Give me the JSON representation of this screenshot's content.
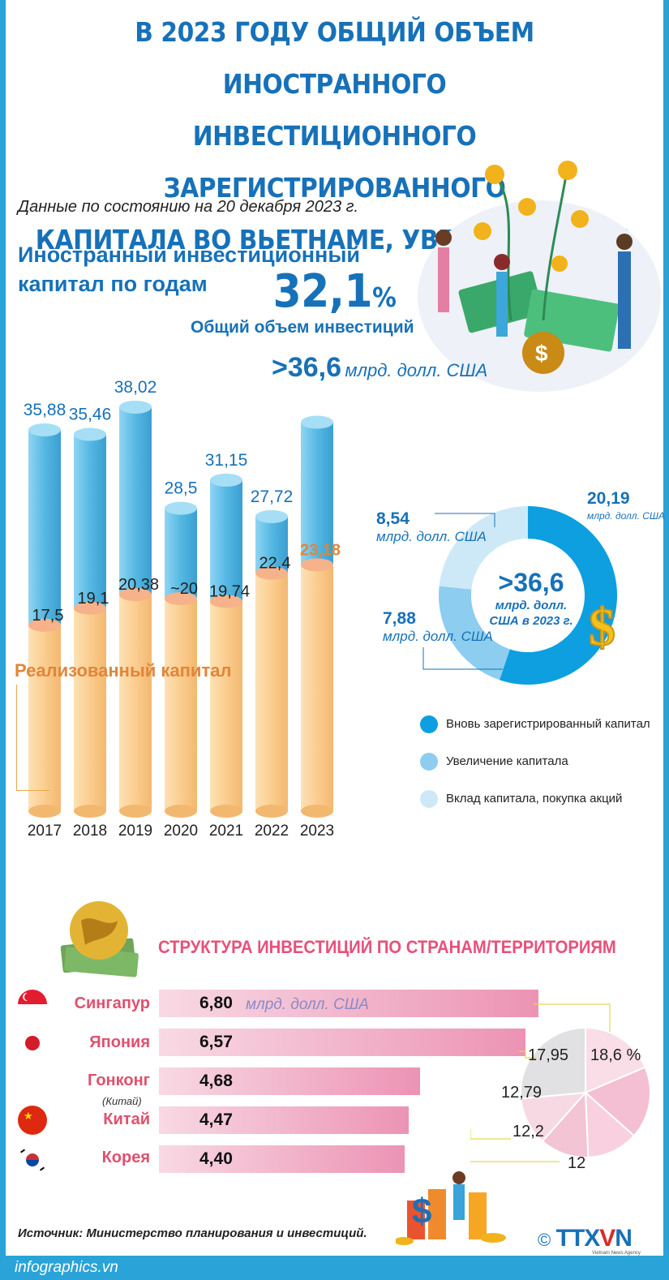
{
  "title": {
    "line1": "В 2023 ГОДУ ОБЩИЙ ОБЪЕМ ИНОСТРАННОГО",
    "line2": "ИНВЕСТИЦИОННОГО ЗАРЕГИСТРИРОВАННОГО",
    "line3": "КАПИТАЛА ВО ВЬЕТНАМЕ, УВЕЛИЧИЛСЯ НА",
    "highlight": "32,1",
    "percent": "%"
  },
  "date_note": "Данные по состоянию на 20 декабря 2023 г.",
  "section1": {
    "line1": "Иностранный инвестиционный",
    "line2": "капитал по годам"
  },
  "total_label": "Общий объем инвестиций",
  "total_value": ">36,6",
  "total_unit": "млрд. долл. США",
  "realized_label": "Реализованный капитал",
  "colors": {
    "blue": "#1771b8",
    "bar_blue": "#63c2e8",
    "bar_orange": "#f9c98a",
    "pink": "#e8507a",
    "orange_text": "#e0863a"
  },
  "chart_data": [
    {
      "type": "bar",
      "categories": [
        "2017",
        "2018",
        "2019",
        "2020",
        "2021",
        "2022",
        "2023"
      ],
      "series": [
        {
          "name": "Общий объем инвестиций",
          "values": [
            35.88,
            35.46,
            38.02,
            28.5,
            31.15,
            27.72,
            36.6
          ],
          "labels": [
            "35,88",
            "35,46",
            "38,02",
            "28,5",
            "31,15",
            "27,72",
            ">36,6"
          ]
        },
        {
          "name": "Реализованный капитал",
          "values": [
            17.5,
            19.1,
            20.38,
            20,
            19.74,
            22.4,
            23.18
          ],
          "labels": [
            "17,5",
            "19,1",
            "20,38",
            "~20",
            "19,74",
            "22,4",
            "23,18"
          ]
        }
      ]
    },
    {
      "type": "pie",
      "center_value": ">36,6",
      "center_text": [
        "млрд. долл.",
        "США в 2023 г."
      ],
      "slices": [
        {
          "name": "Вновь зарегистрированный капитал",
          "value": 20.19,
          "label": "20,19",
          "unit": "млрд. долл. США",
          "color": "#0d9fe0"
        },
        {
          "name": "Увеличение капитала",
          "value": 7.88,
          "label": "7,88",
          "unit": "млрд. долл. США",
          "color": "#8ccdf0"
        },
        {
          "name": "Вклад капитала, покупка акций",
          "value": 8.54,
          "label": "8,54",
          "unit": "млрд. долл. США",
          "color": "#cde9f8"
        }
      ]
    },
    {
      "type": "bar",
      "orientation": "horizontal",
      "unit": "млрд. долл. США",
      "categories": [
        "Сингапур",
        "Япония",
        "Гонконг",
        "Китай",
        "Корея"
      ],
      "category_sub": {
        "Гонконг": "(Китай)"
      },
      "values": [
        6.8,
        6.57,
        4.68,
        4.47,
        4.4
      ],
      "labels": [
        "6,80",
        "6,57",
        "4,68",
        "4,47",
        "4,40"
      ]
    },
    {
      "type": "pie",
      "slices": [
        {
          "value": 18.6,
          "label": "18,6 %"
        },
        {
          "value": 17.95,
          "label": "17,95"
        },
        {
          "value": 12.79,
          "label": "12,79"
        },
        {
          "value": 12.2,
          "label": "12,2"
        },
        {
          "value": 12,
          "label": "12"
        },
        {
          "value": 26.46,
          "label": ""
        }
      ]
    }
  ],
  "section2": "СТРУКТУРА ИНВЕСТИЦИЙ ПО СТРАНАМ/ТЕРРИТОРИЯМ",
  "source": "Источник: Министерство планирования и инвестиций.",
  "logo": {
    "main": "TTX",
    "v": "V",
    "end": "N",
    "copyright": "©",
    "sub": "Vietnam News Agency"
  },
  "footer": "infographics.vn"
}
